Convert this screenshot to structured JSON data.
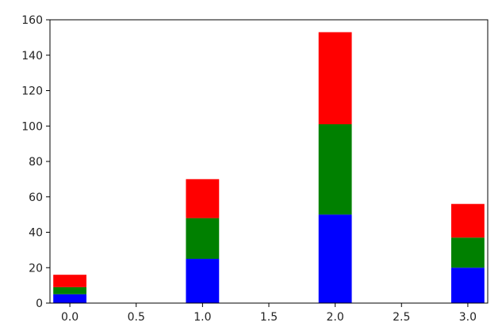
{
  "chart_data": {
    "type": "bar",
    "stacked": true,
    "x": [
      0,
      1,
      2,
      3
    ],
    "bar_width": 0.25,
    "series": [
      {
        "values": [
          5,
          25,
          50,
          20
        ],
        "color": "#0000ff"
      },
      {
        "values": [
          4,
          23,
          51,
          17
        ],
        "color": "#008000"
      },
      {
        "values": [
          7,
          22,
          52,
          19
        ],
        "color": "#ff0000"
      }
    ],
    "xlim": [
      -0.15,
      3.15
    ],
    "ylim": [
      0,
      160
    ],
    "xticks": [
      "0.0",
      "0.5",
      "1.0",
      "1.5",
      "2.0",
      "2.5",
      "3.0"
    ],
    "xtick_values": [
      0,
      0.5,
      1,
      1.5,
      2,
      2.5,
      3
    ],
    "yticks": [
      "0",
      "20",
      "40",
      "60",
      "80",
      "100",
      "120",
      "140",
      "160"
    ],
    "ytick_values": [
      0,
      20,
      40,
      60,
      80,
      100,
      120,
      140,
      160
    ],
    "title": "",
    "xlabel": "",
    "ylabel": "",
    "grid": false,
    "legend": "none"
  }
}
